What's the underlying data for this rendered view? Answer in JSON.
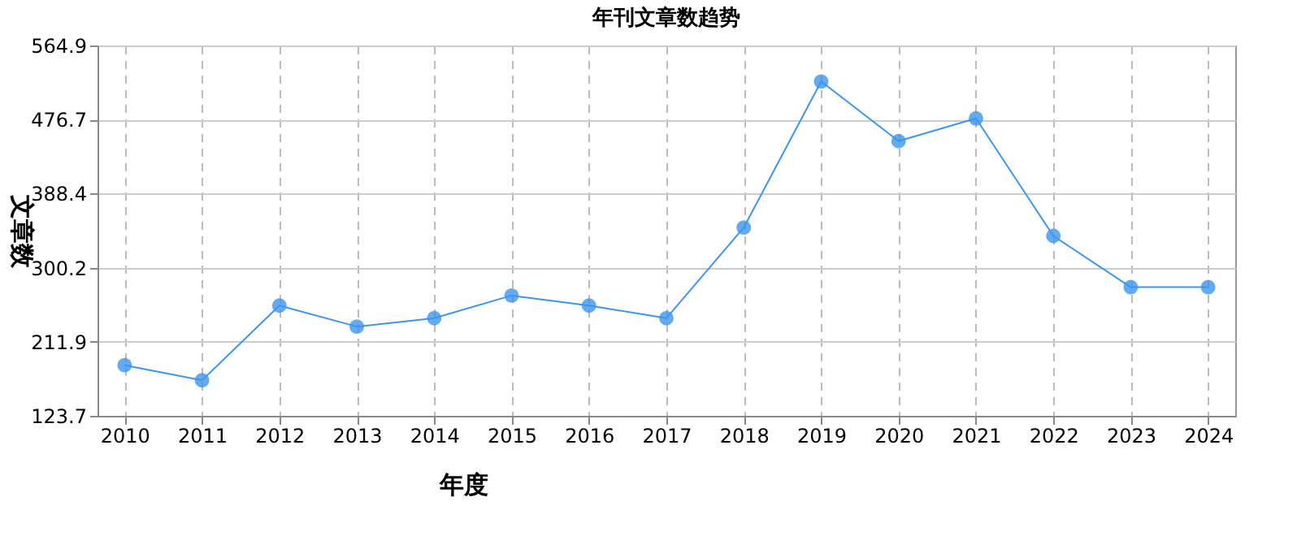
{
  "chart_data": {
    "type": "line",
    "title": "年刊文章数趋势",
    "xlabel": "年度",
    "ylabel": "文章数",
    "categories": [
      "2010",
      "2011",
      "2012",
      "2013",
      "2014",
      "2015",
      "2016",
      "2017",
      "2018",
      "2019",
      "2020",
      "2021",
      "2022",
      "2023",
      "2024"
    ],
    "series": [
      {
        "color": "#3d95ec",
        "values": [
          184,
          166,
          255,
          230,
          240,
          267,
          255,
          240,
          348,
          522,
          451,
          478,
          338,
          277,
          277
        ]
      }
    ],
    "ylim": [
      123.7,
      564.9
    ],
    "yticks": [
      123.7,
      211.9,
      300.2,
      388.4,
      476.7,
      564.9
    ],
    "grid": true,
    "marker": "circle",
    "line_style": "solid",
    "legend": false
  }
}
